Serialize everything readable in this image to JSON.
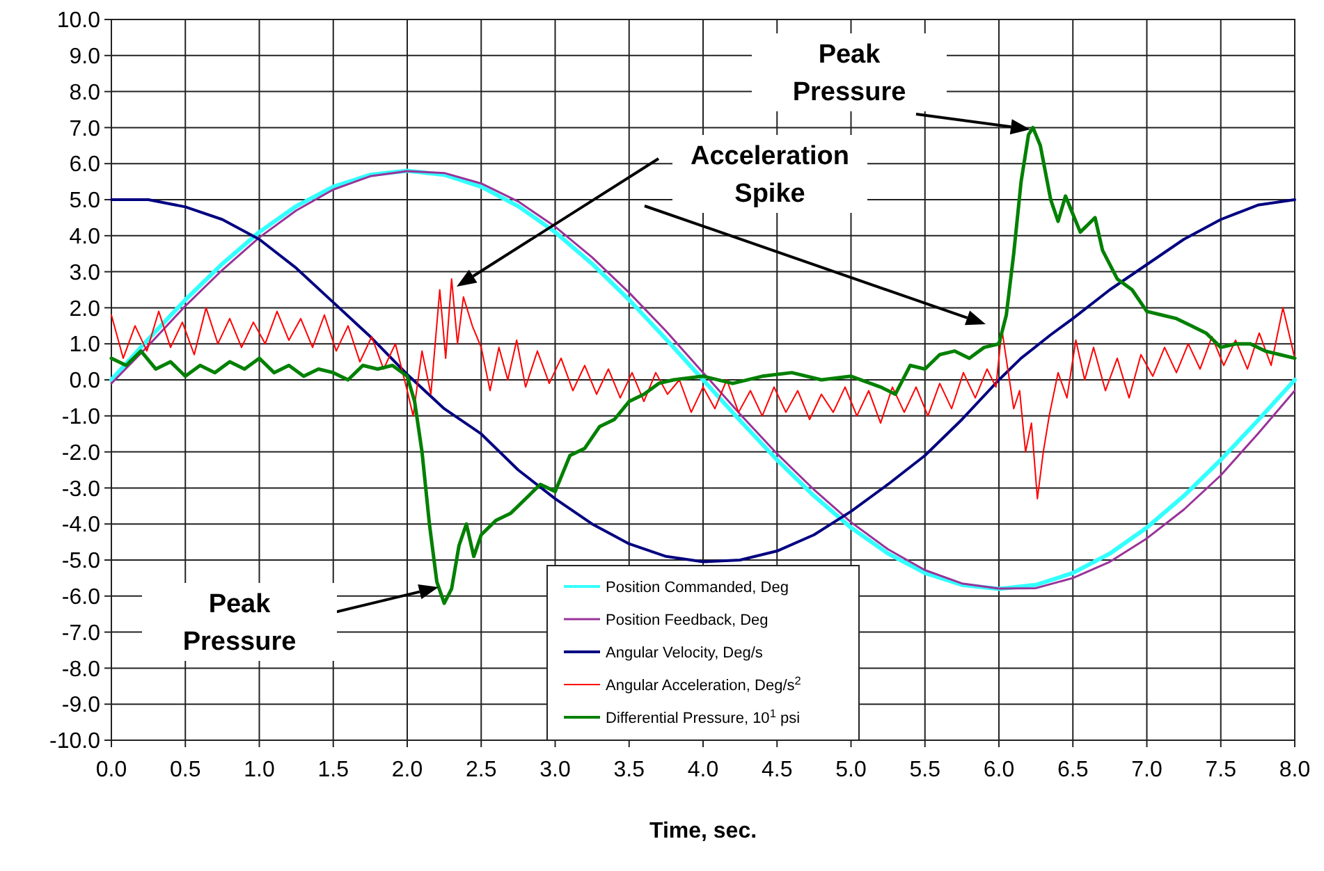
{
  "chart_data": {
    "type": "line",
    "xlabel": "Time, sec.",
    "xlim": [
      0,
      8
    ],
    "ylim": [
      -10,
      10
    ],
    "grid": true,
    "legend": "bottom",
    "xticks": [
      {
        "value": 0,
        "label": "0.0"
      },
      {
        "value": 0.5,
        "label": "0.5"
      },
      {
        "value": 1,
        "label": "1.0"
      },
      {
        "value": 1.5,
        "label": "1.5"
      },
      {
        "value": 2,
        "label": "2.0"
      },
      {
        "value": 2.5,
        "label": "2.5"
      },
      {
        "value": 3,
        "label": "3.0"
      },
      {
        "value": 3.5,
        "label": "3.5"
      },
      {
        "value": 4,
        "label": "4.0"
      },
      {
        "value": 4.5,
        "label": "4.5"
      },
      {
        "value": 5,
        "label": "5.0"
      },
      {
        "value": 5.5,
        "label": "5.5"
      },
      {
        "value": 6,
        "label": "6.0"
      },
      {
        "value": 6.5,
        "label": "6.5"
      },
      {
        "value": 7,
        "label": "7.0"
      },
      {
        "value": 7.5,
        "label": "7.5"
      },
      {
        "value": 8,
        "label": "8.0"
      }
    ],
    "yticks": [
      {
        "value": -10,
        "label": "-10.0"
      },
      {
        "value": -9,
        "label": "-9.0"
      },
      {
        "value": -8,
        "label": "-8.0"
      },
      {
        "value": -7,
        "label": "-7.0"
      },
      {
        "value": -6,
        "label": "-6.0"
      },
      {
        "value": -5,
        "label": "-5.0"
      },
      {
        "value": -4,
        "label": "-4.0"
      },
      {
        "value": -3,
        "label": "-3.0"
      },
      {
        "value": -2,
        "label": "-2.0"
      },
      {
        "value": -1,
        "label": "-1.0"
      },
      {
        "value": 0,
        "label": "0.0"
      },
      {
        "value": 1,
        "label": "1.0"
      },
      {
        "value": 2,
        "label": "2.0"
      },
      {
        "value": 3,
        "label": "3.0"
      },
      {
        "value": 4,
        "label": "4.0"
      },
      {
        "value": 5,
        "label": "5.0"
      },
      {
        "value": 6,
        "label": "6.0"
      },
      {
        "value": 7,
        "label": "7.0"
      },
      {
        "value": 8,
        "label": "8.0"
      },
      {
        "value": 9,
        "label": "9.0"
      },
      {
        "value": 10,
        "label": "10.0"
      }
    ],
    "series": [
      {
        "name": "Position Commanded, Deg",
        "color": "#33ffff",
        "x": [
          0,
          0.25,
          0.5,
          0.75,
          1,
          1.25,
          1.5,
          1.75,
          2,
          2.25,
          2.5,
          2.75,
          3,
          3.25,
          3.5,
          3.75,
          4,
          4.25,
          4.5,
          4.75,
          5,
          5.25,
          5.5,
          5.75,
          6,
          6.25,
          6.5,
          6.75,
          7,
          7.25,
          7.5,
          7.75,
          8
        ],
        "values": [
          0,
          1.13,
          2.22,
          3.22,
          4.1,
          4.82,
          5.36,
          5.69,
          5.8,
          5.69,
          5.36,
          4.82,
          4.1,
          3.22,
          2.22,
          1.13,
          0,
          -1.13,
          -2.22,
          -3.22,
          -4.1,
          -4.82,
          -5.36,
          -5.69,
          -5.8,
          -5.69,
          -5.36,
          -4.82,
          -4.1,
          -3.22,
          -2.22,
          -1.13,
          0
        ]
      },
      {
        "name": "Position Feedback, Deg",
        "color": "#993399",
        "x": [
          0,
          0.25,
          0.5,
          0.75,
          1,
          1.25,
          1.5,
          1.75,
          2,
          2.25,
          2.5,
          2.75,
          3,
          3.25,
          3.5,
          3.75,
          4,
          4.25,
          4.5,
          4.75,
          5,
          5.25,
          5.5,
          5.75,
          6,
          6.25,
          6.5,
          6.75,
          7,
          7.25,
          7.5,
          7.75,
          8
        ],
        "values": [
          -0.1,
          0.95,
          2.05,
          3.05,
          3.95,
          4.7,
          5.28,
          5.65,
          5.79,
          5.74,
          5.45,
          4.95,
          4.25,
          3.4,
          2.42,
          1.35,
          0.2,
          -0.95,
          -2.05,
          -3.05,
          -3.95,
          -4.7,
          -5.28,
          -5.65,
          -5.79,
          -5.78,
          -5.5,
          -5.05,
          -4.4,
          -3.6,
          -2.65,
          -1.5,
          -0.3
        ]
      },
      {
        "name": "Angular Velocity, Deg/s",
        "color": "#000080",
        "x": [
          0,
          0.25,
          0.5,
          0.75,
          1,
          1.25,
          1.5,
          1.75,
          2,
          2.25,
          2.5,
          2.75,
          3,
          3.25,
          3.5,
          3.75,
          4,
          4.25,
          4.5,
          4.75,
          5,
          5.25,
          5.5,
          5.75,
          6,
          6.15,
          6.35,
          6.5,
          6.75,
          7,
          7.25,
          7.5,
          7.75,
          8
        ],
        "values": [
          5,
          5,
          4.8,
          4.45,
          3.9,
          3.1,
          2.15,
          1.2,
          0.15,
          -0.8,
          -1.5,
          -2.5,
          -3.3,
          -4,
          -4.55,
          -4.9,
          -5.05,
          -5,
          -4.75,
          -4.3,
          -3.65,
          -2.9,
          -2.1,
          -1.1,
          0,
          0.6,
          1.25,
          1.7,
          2.5,
          3.2,
          3.9,
          4.45,
          4.85,
          5
        ]
      },
      {
        "name": "Angular Acceleration, Deg/s$^{2}$",
        "color": "#ff0000",
        "x": [
          0,
          0.08,
          0.16,
          0.24,
          0.32,
          0.4,
          0.48,
          0.56,
          0.64,
          0.72,
          0.8,
          0.88,
          0.96,
          1.04,
          1.12,
          1.2,
          1.28,
          1.36,
          1.44,
          1.52,
          1.6,
          1.68,
          1.76,
          1.84,
          1.92,
          2,
          2.04,
          2.1,
          2.16,
          2.22,
          2.26,
          2.3,
          2.34,
          2.38,
          2.44,
          2.5,
          2.56,
          2.62,
          2.68,
          2.74,
          2.8,
          2.88,
          2.96,
          3.04,
          3.12,
          3.2,
          3.28,
          3.36,
          3.44,
          3.52,
          3.6,
          3.68,
          3.76,
          3.84,
          3.92,
          4,
          4.08,
          4.16,
          4.24,
          4.32,
          4.4,
          4.48,
          4.56,
          4.64,
          4.72,
          4.8,
          4.88,
          4.96,
          5.04,
          5.12,
          5.2,
          5.28,
          5.36,
          5.44,
          5.52,
          5.6,
          5.68,
          5.76,
          5.84,
          5.92,
          5.98,
          6.02,
          6.06,
          6.1,
          6.14,
          6.18,
          6.22,
          6.26,
          6.3,
          6.34,
          6.4,
          6.46,
          6.52,
          6.58,
          6.64,
          6.72,
          6.8,
          6.88,
          6.96,
          7.04,
          7.12,
          7.2,
          7.28,
          7.36,
          7.44,
          7.52,
          7.6,
          7.68,
          7.76,
          7.84,
          7.92,
          8
        ],
        "values": [
          1.8,
          0.6,
          1.5,
          0.8,
          1.9,
          0.9,
          1.6,
          0.7,
          2,
          1,
          1.7,
          0.9,
          1.6,
          1,
          1.9,
          1.1,
          1.7,
          0.9,
          1.8,
          0.8,
          1.5,
          0.5,
          1.2,
          0.3,
          1,
          -0.3,
          -1,
          0.8,
          -0.4,
          2.5,
          0.6,
          2.8,
          1,
          2.3,
          1.5,
          0.9,
          -0.3,
          0.9,
          0,
          1.1,
          -0.2,
          0.8,
          -0.1,
          0.6,
          -0.3,
          0.4,
          -0.4,
          0.3,
          -0.5,
          0.2,
          -0.6,
          0.2,
          -0.4,
          0,
          -0.9,
          -0.2,
          -0.8,
          0,
          -0.9,
          -0.3,
          -1,
          -0.2,
          -0.9,
          -0.3,
          -1.1,
          -0.4,
          -0.9,
          -0.2,
          -1,
          -0.3,
          -1.2,
          -0.2,
          -0.9,
          -0.2,
          -1,
          -0.1,
          -0.8,
          0.2,
          -0.5,
          0.3,
          -0.2,
          1.4,
          0.3,
          -0.8,
          -0.3,
          -2,
          -1.2,
          -3.3,
          -2,
          -1,
          0.2,
          -0.5,
          1.1,
          0,
          0.9,
          -0.3,
          0.6,
          -0.5,
          0.7,
          0.1,
          0.9,
          0.2,
          1,
          0.3,
          1.2,
          0.4,
          1.1,
          0.3,
          1.3,
          0.4,
          2,
          0.6
        ]
      },
      {
        "name": "Differential Pressure, 10$^{1}$ psi",
        "color": "#008000",
        "x": [
          0,
          0.1,
          0.2,
          0.3,
          0.4,
          0.5,
          0.6,
          0.7,
          0.8,
          0.9,
          1,
          1.1,
          1.2,
          1.3,
          1.4,
          1.5,
          1.6,
          1.7,
          1.8,
          1.9,
          2,
          2.05,
          2.1,
          2.15,
          2.2,
          2.25,
          2.3,
          2.35,
          2.4,
          2.45,
          2.5,
          2.6,
          2.7,
          2.8,
          2.9,
          3,
          3.1,
          3.2,
          3.3,
          3.4,
          3.5,
          3.6,
          3.7,
          3.8,
          4,
          4.2,
          4.4,
          4.6,
          4.8,
          5,
          5.2,
          5.3,
          5.4,
          5.5,
          5.6,
          5.7,
          5.8,
          5.9,
          6,
          6.05,
          6.1,
          6.15,
          6.2,
          6.23,
          6.28,
          6.35,
          6.4,
          6.45,
          6.5,
          6.55,
          6.6,
          6.65,
          6.7,
          6.8,
          6.9,
          7,
          7.1,
          7.2,
          7.3,
          7.4,
          7.5,
          7.6,
          7.7,
          7.8,
          7.9,
          8
        ],
        "values": [
          0.6,
          0.4,
          0.8,
          0.3,
          0.5,
          0.1,
          0.4,
          0.2,
          0.5,
          0.3,
          0.6,
          0.2,
          0.4,
          0.1,
          0.3,
          0.2,
          0,
          0.4,
          0.3,
          0.4,
          0.1,
          -0.6,
          -2,
          -4,
          -5.6,
          -6.2,
          -5.8,
          -4.6,
          -4,
          -4.9,
          -4.3,
          -3.9,
          -3.7,
          -3.3,
          -2.9,
          -3.1,
          -2.1,
          -1.9,
          -1.3,
          -1.1,
          -0.6,
          -0.4,
          -0.1,
          0,
          0.1,
          -0.1,
          0.1,
          0.2,
          0,
          0.1,
          -0.2,
          -0.4,
          0.4,
          0.3,
          0.7,
          0.8,
          0.6,
          0.9,
          1,
          1.8,
          3.5,
          5.5,
          6.8,
          7,
          6.5,
          5,
          4.4,
          5.1,
          4.6,
          4.1,
          4.3,
          4.5,
          3.6,
          2.8,
          2.5,
          1.9,
          1.8,
          1.7,
          1.5,
          1.3,
          0.9,
          1,
          1,
          0.8,
          0.7,
          0.6
        ]
      }
    ],
    "annotations": [
      "Peak Pressure",
      "Acceleration Spike",
      "Peak Pressure"
    ]
  }
}
